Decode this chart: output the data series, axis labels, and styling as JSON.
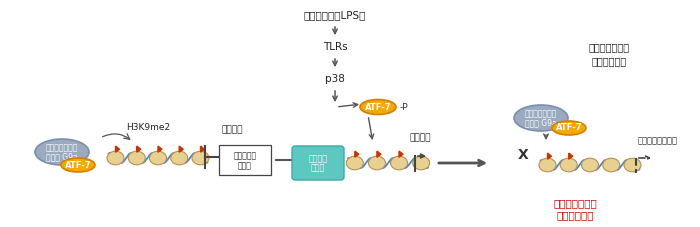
{
  "bg_color": "#ffffff",
  "fig_width": 7.0,
  "fig_height": 2.27,
  "dpi": 100,
  "top_label": "病原体感染（LPS）",
  "step1_label": "TLRs",
  "step2_label": "p38",
  "atf7_orange_color": "#F5A800",
  "atf7_orange_border": "#D48000",
  "g9a_blue_color": "#9AAABF",
  "g9a_blue_border": "#7A8FAF",
  "transcription_factor_color": "#5CC8C0",
  "transcription_factor_border": "#3AABAB",
  "panel1_histone_label1": "ヒストンメチル",
  "panel1_histone_label2": "化酵素 G9a",
  "panel1_atf7_label": "ATF-7",
  "panel1_h3k9_label": "H3K9me2",
  "panel1_transcription_inhibit": "転写抑制",
  "panel1_gene_box_line1": "自然免疫系",
  "panel1_gene_box_line2": "遣伝子",
  "panel2_atf7_label": "ATF-7",
  "panel2_p_label": "-P",
  "panel2_transcription_factor_label1": "転写活性",
  "panel2_transcription_factor_label2": "化因子",
  "panel2_induction_label": "転写誘導",
  "panel3_histone_label1": "ヒストンメチル",
  "panel3_histone_label2": "化酵素 G9a",
  "panel3_atf7_label": "ATF-7",
  "panel3_resistance_label1": "病原体に対する",
  "panel3_resistance_label2": "抗抗性の上昇",
  "panel3_basal_label": "高基底発現レベル",
  "panel3_epigenome_label1": "エピゲノム変化",
  "panel3_epigenome_label2": "の長期間維持",
  "epigenome_color": "#CC0000",
  "arrow_color": "#555555",
  "chromatin_fill": "#E8D090",
  "chromatin_stroke": "#B89050",
  "dna_color": "#4488CC",
  "flag_color": "#CC3300",
  "gene_box_color": "#ffffff",
  "gene_box_border": "#444444"
}
